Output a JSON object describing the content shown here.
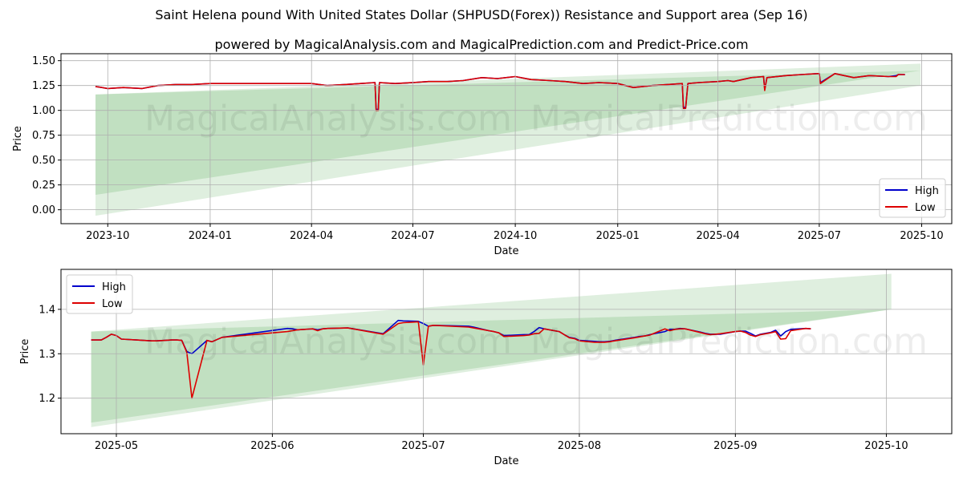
{
  "title": "Saint Helena pound With United States Dollar (SHPUSD(Forex)) Resistance and Support area (Sep 16)",
  "subtitle": "powered by MagicalAnalysis.com and MagicalPrediction.com and Predict-Price.com",
  "watermarks": [
    "MagicalAnalysis.com",
    "MagicalPrediction.com"
  ],
  "colors": {
    "high": "#0000cc",
    "low": "#dd0000",
    "band_light": "#b7dcb7",
    "band_dark": "#a8d3a8",
    "grid": "#b0b0b0"
  },
  "chart_data": [
    {
      "type": "line",
      "xlabel": "Date",
      "ylabel": "Price",
      "x_ticks": [
        "2023-10",
        "2024-01",
        "2024-04",
        "2024-07",
        "2024-10",
        "2025-01",
        "2025-04",
        "2025-07",
        "2025-10"
      ],
      "y_ticks": [
        "0.00",
        "0.25",
        "0.50",
        "0.75",
        "1.00",
        "1.25",
        "1.50"
      ],
      "xlim": [
        "2023-08-20",
        "2025-10-28"
      ],
      "ylim": [
        -0.14,
        1.57
      ],
      "grid": true,
      "legend": "bottom-right",
      "legend_entries": [
        "High",
        "Low"
      ],
      "bands": [
        {
          "x": [
            "2023-09-20",
            "2025-09-30"
          ],
          "upper": [
            1.16,
            1.47
          ],
          "lower": [
            -0.06,
            1.25
          ]
        },
        {
          "x": [
            "2023-09-20",
            "2025-09-30"
          ],
          "upper": [
            1.16,
            1.4
          ],
          "lower": [
            0.15,
            1.4
          ]
        }
      ],
      "series": [
        {
          "name": "High",
          "x": [
            "2023-09-20",
            "2023-10-01",
            "2023-10-15",
            "2023-11-01",
            "2023-11-15",
            "2023-12-01",
            "2023-12-15",
            "2024-01-01",
            "2024-02-01",
            "2024-03-01",
            "2024-04-01",
            "2024-04-15",
            "2024-05-01",
            "2024-05-15",
            "2024-05-28",
            "2024-05-29",
            "2024-05-31",
            "2024-06-01",
            "2024-06-15",
            "2024-07-01",
            "2024-07-15",
            "2024-08-01",
            "2024-08-15",
            "2024-09-01",
            "2024-09-15",
            "2024-10-01",
            "2024-10-15",
            "2024-11-01",
            "2024-11-15",
            "2024-12-01",
            "2024-12-15",
            "2025-01-01",
            "2025-01-15",
            "2025-02-01",
            "2025-02-15",
            "2025-02-28",
            "2025-03-01",
            "2025-03-03",
            "2025-03-05",
            "2025-03-15",
            "2025-04-01",
            "2025-04-10",
            "2025-04-15",
            "2025-05-01",
            "2025-05-12",
            "2025-05-13",
            "2025-05-15",
            "2025-06-01",
            "2025-06-15",
            "2025-06-30",
            "2025-07-01",
            "2025-07-02",
            "2025-07-15",
            "2025-08-01",
            "2025-08-15",
            "2025-09-01",
            "2025-09-08",
            "2025-09-10",
            "2025-09-16"
          ],
          "y": [
            1.24,
            1.22,
            1.23,
            1.22,
            1.25,
            1.26,
            1.26,
            1.27,
            1.27,
            1.27,
            1.27,
            1.25,
            1.26,
            1.27,
            1.28,
            1.01,
            1.01,
            1.28,
            1.27,
            1.28,
            1.29,
            1.29,
            1.3,
            1.33,
            1.32,
            1.34,
            1.31,
            1.3,
            1.29,
            1.27,
            1.28,
            1.27,
            1.23,
            1.25,
            1.26,
            1.27,
            1.03,
            1.03,
            1.27,
            1.28,
            1.29,
            1.3,
            1.29,
            1.33,
            1.34,
            1.21,
            1.33,
            1.35,
            1.36,
            1.37,
            1.37,
            1.28,
            1.37,
            1.33,
            1.35,
            1.34,
            1.35,
            1.36,
            1.36
          ]
        },
        {
          "name": "Low",
          "x": [
            "2023-09-20",
            "2023-10-01",
            "2023-10-15",
            "2023-11-01",
            "2023-11-15",
            "2023-12-01",
            "2023-12-15",
            "2024-01-01",
            "2024-02-01",
            "2024-03-01",
            "2024-04-01",
            "2024-04-15",
            "2024-05-01",
            "2024-05-15",
            "2024-05-28",
            "2024-05-29",
            "2024-05-31",
            "2024-06-01",
            "2024-06-15",
            "2024-07-01",
            "2024-07-15",
            "2024-08-01",
            "2024-08-15",
            "2024-09-01",
            "2024-09-15",
            "2024-10-01",
            "2024-10-15",
            "2024-11-01",
            "2024-11-15",
            "2024-12-01",
            "2024-12-15",
            "2025-01-01",
            "2025-01-15",
            "2025-02-01",
            "2025-02-15",
            "2025-02-28",
            "2025-03-01",
            "2025-03-03",
            "2025-03-05",
            "2025-03-15",
            "2025-04-01",
            "2025-04-10",
            "2025-04-15",
            "2025-05-01",
            "2025-05-12",
            "2025-05-13",
            "2025-05-15",
            "2025-06-01",
            "2025-06-15",
            "2025-06-30",
            "2025-07-01",
            "2025-07-02",
            "2025-07-15",
            "2025-08-01",
            "2025-08-15",
            "2025-09-01",
            "2025-09-08",
            "2025-09-10",
            "2025-09-16"
          ],
          "y": [
            1.24,
            1.22,
            1.23,
            1.22,
            1.25,
            1.26,
            1.26,
            1.27,
            1.27,
            1.27,
            1.27,
            1.25,
            1.26,
            1.27,
            1.28,
            1.0,
            1.0,
            1.28,
            1.27,
            1.28,
            1.29,
            1.29,
            1.3,
            1.33,
            1.32,
            1.34,
            1.31,
            1.3,
            1.29,
            1.27,
            1.28,
            1.27,
            1.23,
            1.25,
            1.26,
            1.27,
            1.02,
            1.02,
            1.27,
            1.28,
            1.29,
            1.3,
            1.29,
            1.33,
            1.34,
            1.2,
            1.33,
            1.35,
            1.36,
            1.37,
            1.37,
            1.27,
            1.37,
            1.33,
            1.35,
            1.34,
            1.34,
            1.36,
            1.36
          ]
        }
      ]
    },
    {
      "type": "line",
      "xlabel": "Date",
      "ylabel": "Price",
      "x_ticks": [
        "2025-05",
        "2025-06",
        "2025-07",
        "2025-08",
        "2025-09",
        "2025-10"
      ],
      "y_ticks": [
        "1.2",
        "1.3",
        "1.4"
      ],
      "xlim": [
        "2025-04-20",
        "2025-10-14"
      ],
      "ylim": [
        1.12,
        1.49
      ],
      "grid": true,
      "legend": "top-left",
      "legend_entries": [
        "High",
        "Low"
      ],
      "bands": [
        {
          "x": [
            "2025-04-26",
            "2025-10-02"
          ],
          "upper": [
            1.35,
            1.48
          ],
          "lower": [
            1.135,
            1.4
          ]
        },
        {
          "x": [
            "2025-04-26",
            "2025-10-02"
          ],
          "upper": [
            1.35,
            1.4
          ],
          "lower": [
            1.145,
            1.4
          ]
        }
      ],
      "series": [
        {
          "name": "High",
          "x": [
            "2025-04-26",
            "2025-04-28",
            "2025-04-29",
            "2025-04-30",
            "2025-05-01",
            "2025-05-02",
            "2025-05-05",
            "2025-05-08",
            "2025-05-09",
            "2025-05-12",
            "2025-05-13",
            "2025-05-14",
            "2025-05-15",
            "2025-05-16",
            "2025-05-19",
            "2025-05-20",
            "2025-05-22",
            "2025-06-04",
            "2025-06-05",
            "2025-06-06",
            "2025-06-09",
            "2025-06-10",
            "2025-06-11",
            "2025-06-12",
            "2025-06-16",
            "2025-06-23",
            "2025-06-26",
            "2025-06-27",
            "2025-06-30",
            "2025-07-01",
            "2025-07-02",
            "2025-07-03",
            "2025-07-10",
            "2025-07-11",
            "2025-07-14",
            "2025-07-15",
            "2025-07-16",
            "2025-07-17",
            "2025-07-21",
            "2025-07-22",
            "2025-07-23",
            "2025-07-24",
            "2025-07-25",
            "2025-07-28",
            "2025-07-29",
            "2025-07-30",
            "2025-07-31",
            "2025-08-01",
            "2025-08-04",
            "2025-08-05",
            "2025-08-06",
            "2025-08-07",
            "2025-08-08",
            "2025-08-12",
            "2025-08-13",
            "2025-08-14",
            "2025-08-15",
            "2025-08-18",
            "2025-08-19",
            "2025-08-20",
            "2025-08-21",
            "2025-08-22",
            "2025-08-25",
            "2025-08-26",
            "2025-08-27",
            "2025-08-28",
            "2025-08-29",
            "2025-09-01",
            "2025-09-02",
            "2025-09-03",
            "2025-09-04",
            "2025-09-05",
            "2025-09-06",
            "2025-09-08",
            "2025-09-09",
            "2025-09-10",
            "2025-09-11",
            "2025-09-12",
            "2025-09-15",
            "2025-09-16"
          ],
          "y": [
            1.331,
            1.331,
            1.337,
            1.344,
            1.341,
            1.333,
            1.331,
            1.329,
            1.329,
            1.331,
            1.331,
            1.33,
            1.305,
            1.3,
            1.33,
            1.327,
            1.337,
            1.357,
            1.356,
            1.354,
            1.356,
            1.354,
            1.356,
            1.357,
            1.358,
            1.345,
            1.375,
            1.374,
            1.373,
            1.368,
            1.362,
            1.364,
            1.362,
            1.36,
            1.352,
            1.35,
            1.347,
            1.341,
            1.343,
            1.343,
            1.35,
            1.359,
            1.356,
            1.35,
            1.343,
            1.337,
            1.335,
            1.33,
            1.328,
            1.327,
            1.327,
            1.328,
            1.33,
            1.337,
            1.339,
            1.34,
            1.343,
            1.35,
            1.355,
            1.355,
            1.357,
            1.356,
            1.349,
            1.346,
            1.344,
            1.344,
            1.344,
            1.35,
            1.351,
            1.351,
            1.346,
            1.34,
            1.344,
            1.348,
            1.353,
            1.34,
            1.35,
            1.355,
            1.357,
            1.356
          ]
        },
        {
          "name": "Low",
          "x": [
            "2025-04-26",
            "2025-04-28",
            "2025-04-29",
            "2025-04-30",
            "2025-05-01",
            "2025-05-02",
            "2025-05-05",
            "2025-05-08",
            "2025-05-09",
            "2025-05-12",
            "2025-05-13",
            "2025-05-14",
            "2025-05-15",
            "2025-05-16",
            "2025-05-19",
            "2025-05-20",
            "2025-05-22",
            "2025-06-04",
            "2025-06-05",
            "2025-06-06",
            "2025-06-09",
            "2025-06-10",
            "2025-06-11",
            "2025-06-12",
            "2025-06-16",
            "2025-06-23",
            "2025-06-26",
            "2025-06-27",
            "2025-06-30",
            "2025-07-01",
            "2025-07-02",
            "2025-07-03",
            "2025-07-10",
            "2025-07-11",
            "2025-07-14",
            "2025-07-15",
            "2025-07-16",
            "2025-07-17",
            "2025-07-21",
            "2025-07-22",
            "2025-07-23",
            "2025-07-24",
            "2025-07-25",
            "2025-07-28",
            "2025-07-29",
            "2025-07-30",
            "2025-07-31",
            "2025-08-01",
            "2025-08-04",
            "2025-08-05",
            "2025-08-06",
            "2025-08-07",
            "2025-08-08",
            "2025-08-12",
            "2025-08-13",
            "2025-08-14",
            "2025-08-15",
            "2025-08-18",
            "2025-08-19",
            "2025-08-20",
            "2025-08-21",
            "2025-08-22",
            "2025-08-25",
            "2025-08-26",
            "2025-08-27",
            "2025-08-28",
            "2025-08-29",
            "2025-09-01",
            "2025-09-02",
            "2025-09-03",
            "2025-09-04",
            "2025-09-05",
            "2025-09-06",
            "2025-09-08",
            "2025-09-09",
            "2025-09-10",
            "2025-09-11",
            "2025-09-12",
            "2025-09-15",
            "2025-09-16"
          ],
          "y": [
            1.331,
            1.331,
            1.337,
            1.344,
            1.341,
            1.333,
            1.331,
            1.329,
            1.329,
            1.331,
            1.331,
            1.33,
            1.303,
            1.2,
            1.33,
            1.327,
            1.337,
            1.35,
            1.352,
            1.354,
            1.356,
            1.352,
            1.356,
            1.357,
            1.358,
            1.344,
            1.368,
            1.37,
            1.372,
            1.275,
            1.362,
            1.364,
            1.36,
            1.358,
            1.352,
            1.35,
            1.347,
            1.339,
            1.341,
            1.342,
            1.345,
            1.346,
            1.356,
            1.35,
            1.343,
            1.336,
            1.334,
            1.329,
            1.326,
            1.326,
            1.326,
            1.327,
            1.329,
            1.336,
            1.338,
            1.34,
            1.342,
            1.356,
            1.352,
            1.355,
            1.356,
            1.356,
            1.348,
            1.345,
            1.343,
            1.344,
            1.345,
            1.35,
            1.351,
            1.348,
            1.342,
            1.339,
            1.343,
            1.347,
            1.35,
            1.333,
            1.334,
            1.352,
            1.357,
            1.356
          ]
        }
      ]
    }
  ]
}
